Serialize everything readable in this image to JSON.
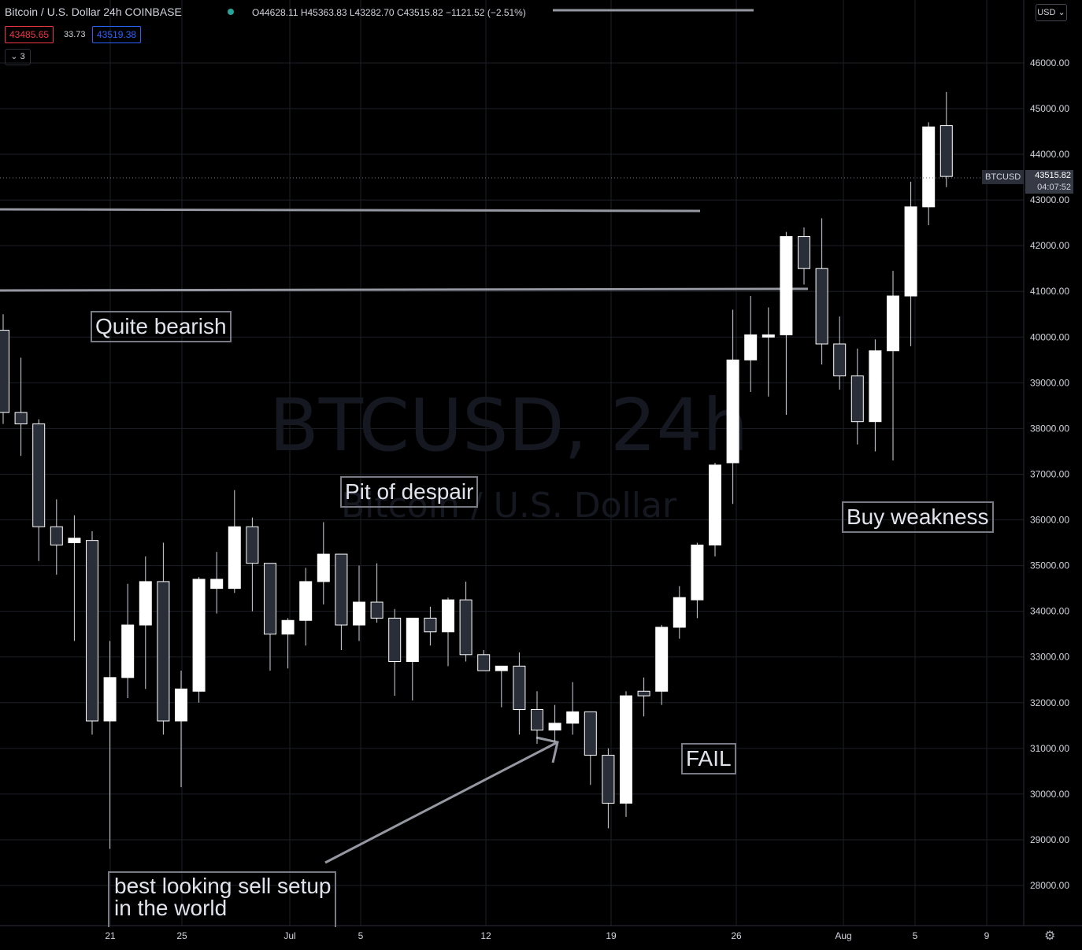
{
  "header": {
    "symbol_title": "Bitcoin / U.S. Dollar  24h  COINBASE",
    "ohlc": "O44628.11 H45363.83 L43282.70 C43515.82 −1121.52 (−2.51%)",
    "sell_price": "43485.65",
    "spread": "33.73",
    "buy_price": "43519.38",
    "indicators_toggle": "3",
    "currency": "USD"
  },
  "watermark": {
    "line1": "BTCUSD, 24h",
    "line2": "Bitcoin / U.S. Dollar"
  },
  "last_price": {
    "symbol": "BTCUSD",
    "price": "43515.82",
    "countdown": "04:07:52"
  },
  "annotations": {
    "quite_bearish": "Quite bearish",
    "pit_of_despair": "Pit of despair",
    "buy_weakness": "Buy weakness",
    "fail": "FAIL",
    "best_sell_line1": "best looking sell setup",
    "best_sell_line2": "in the world"
  },
  "colors": {
    "background": "#000000",
    "up": "#ffffff",
    "down": "#2a2e39",
    "wick": "#d1d4dc",
    "grid": "#1c1f26",
    "trendline": "#9598a1",
    "sell": "#f23645",
    "buy": "#2962ff",
    "live_dot": "#26a69a"
  },
  "chart_data": {
    "type": "candlestick",
    "title": "",
    "y_axis": {
      "ticks": [
        "28000.00",
        "29000.00",
        "30000.00",
        "31000.00",
        "32000.00",
        "33000.00",
        "34000.00",
        "35000.00",
        "36000.00",
        "37000.00",
        "38000.00",
        "39000.00",
        "40000.00",
        "41000.00",
        "42000.00",
        "43000.00",
        "44000.00",
        "45000.00",
        "46000.00"
      ],
      "ylim": [
        27600,
        47300
      ]
    },
    "x_axis": {
      "ticks": [
        "21",
        "25",
        "Jul",
        "5",
        "12",
        "19",
        "26",
        "Aug",
        "5",
        "9"
      ]
    },
    "candles": [
      {
        "o": 40150,
        "h": 40500,
        "l": 38100,
        "c": 38350
      },
      {
        "o": 38350,
        "h": 39550,
        "l": 37400,
        "c": 38100
      },
      {
        "o": 38100,
        "h": 38200,
        "l": 35100,
        "c": 35850
      },
      {
        "o": 35850,
        "h": 36450,
        "l": 34800,
        "c": 35450
      },
      {
        "o": 35500,
        "h": 36100,
        "l": 33350,
        "c": 35600
      },
      {
        "o": 35550,
        "h": 35750,
        "l": 31300,
        "c": 31600
      },
      {
        "o": 31600,
        "h": 33350,
        "l": 28800,
        "c": 32550
      },
      {
        "o": 32550,
        "h": 34600,
        "l": 32100,
        "c": 33700
      },
      {
        "o": 33700,
        "h": 35200,
        "l": 32300,
        "c": 34650
      },
      {
        "o": 34650,
        "h": 35500,
        "l": 31300,
        "c": 31600
      },
      {
        "o": 31600,
        "h": 32700,
        "l": 30150,
        "c": 32300
      },
      {
        "o": 32250,
        "h": 34750,
        "l": 32000,
        "c": 34700
      },
      {
        "o": 34500,
        "h": 35300,
        "l": 33950,
        "c": 34700
      },
      {
        "o": 34500,
        "h": 36650,
        "l": 34400,
        "c": 35850
      },
      {
        "o": 35850,
        "h": 36050,
        "l": 34000,
        "c": 35050
      },
      {
        "o": 35050,
        "h": 35050,
        "l": 32700,
        "c": 33500
      },
      {
        "o": 33500,
        "h": 33850,
        "l": 32750,
        "c": 33800
      },
      {
        "o": 33800,
        "h": 34950,
        "l": 33250,
        "c": 34650
      },
      {
        "o": 34650,
        "h": 35950,
        "l": 34150,
        "c": 35250
      },
      {
        "o": 35250,
        "h": 35250,
        "l": 33150,
        "c": 33700
      },
      {
        "o": 33700,
        "h": 35000,
        "l": 33350,
        "c": 34200
      },
      {
        "o": 34200,
        "h": 35050,
        "l": 33750,
        "c": 33850
      },
      {
        "o": 33850,
        "h": 34050,
        "l": 32150,
        "c": 32900
      },
      {
        "o": 32900,
        "h": 33850,
        "l": 32050,
        "c": 33850
      },
      {
        "o": 33850,
        "h": 34100,
        "l": 33250,
        "c": 33550
      },
      {
        "o": 33550,
        "h": 34300,
        "l": 32800,
        "c": 34250
      },
      {
        "o": 34250,
        "h": 34650,
        "l": 32900,
        "c": 33050
      },
      {
        "o": 33050,
        "h": 33150,
        "l": 32700,
        "c": 32700
      },
      {
        "o": 32700,
        "h": 32800,
        "l": 31900,
        "c": 32800
      },
      {
        "o": 32800,
        "h": 33100,
        "l": 31300,
        "c": 31850
      },
      {
        "o": 31850,
        "h": 32250,
        "l": 31100,
        "c": 31400
      },
      {
        "o": 31400,
        "h": 31950,
        "l": 31150,
        "c": 31550
      },
      {
        "o": 31550,
        "h": 32450,
        "l": 31300,
        "c": 31800
      },
      {
        "o": 31800,
        "h": 31800,
        "l": 30200,
        "c": 30850
      },
      {
        "o": 30850,
        "h": 31000,
        "l": 29250,
        "c": 29800
      },
      {
        "o": 29800,
        "h": 32250,
        "l": 29500,
        "c": 32150
      },
      {
        "o": 32250,
        "h": 32550,
        "l": 31700,
        "c": 32150
      },
      {
        "o": 32250,
        "h": 33700,
        "l": 31950,
        "c": 33650
      },
      {
        "o": 33650,
        "h": 34550,
        "l": 33400,
        "c": 34300
      },
      {
        "o": 34250,
        "h": 35500,
        "l": 33850,
        "c": 35450
      },
      {
        "o": 35450,
        "h": 37250,
        "l": 35200,
        "c": 37200
      },
      {
        "o": 37250,
        "h": 40600,
        "l": 36350,
        "c": 39500
      },
      {
        "o": 39500,
        "h": 40900,
        "l": 38800,
        "c": 40050
      },
      {
        "o": 40000,
        "h": 40650,
        "l": 38700,
        "c": 40050
      },
      {
        "o": 40050,
        "h": 42300,
        "l": 38300,
        "c": 42200
      },
      {
        "o": 42200,
        "h": 42400,
        "l": 41150,
        "c": 41500
      },
      {
        "o": 41500,
        "h": 42600,
        "l": 39400,
        "c": 39850
      },
      {
        "o": 39850,
        "h": 40450,
        "l": 38850,
        "c": 39150
      },
      {
        "o": 39150,
        "h": 39750,
        "l": 37650,
        "c": 38150
      },
      {
        "o": 38150,
        "h": 39950,
        "l": 37500,
        "c": 39700
      },
      {
        "o": 39700,
        "h": 41450,
        "l": 37300,
        "c": 40900
      },
      {
        "o": 40900,
        "h": 43400,
        "l": 39800,
        "c": 42850
      },
      {
        "o": 42850,
        "h": 44700,
        "l": 42450,
        "c": 44600
      },
      {
        "o": 44628.11,
        "h": 45363.83,
        "l": 43282.7,
        "c": 43515.82
      }
    ]
  }
}
